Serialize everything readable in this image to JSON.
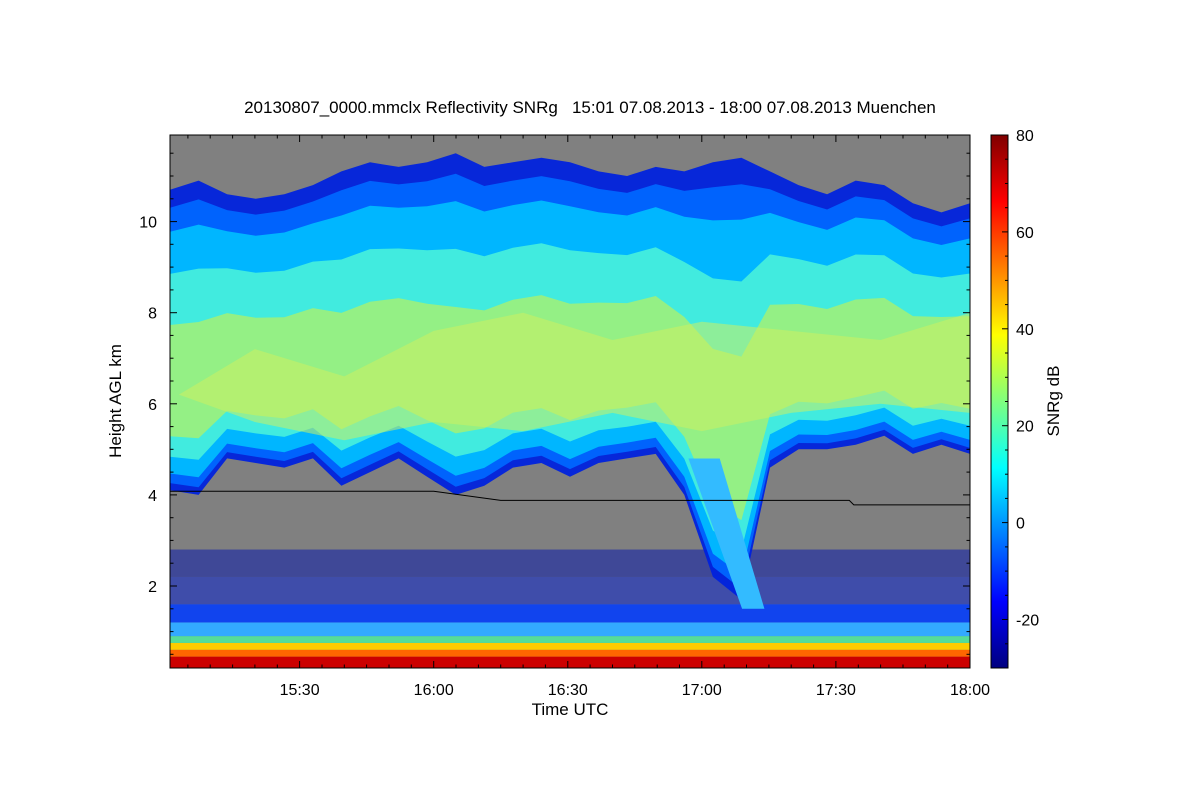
{
  "chart_data": {
    "type": "heatmap",
    "title": "20130807_0000.mmclx Reflectivity SNRg   15:01 07.08.2013 - 18:00 07.08.2013 Muenchen",
    "xlabel": "Time UTC",
    "ylabel": "Height AGL km",
    "x_tick_labels": [
      "15:30",
      "16:00",
      "16:30",
      "17:00",
      "17:30",
      "18:00"
    ],
    "x_tick_values_min": [
      30,
      60,
      90,
      120,
      150,
      180
    ],
    "xlim_min": [
      1,
      180
    ],
    "y_tick_labels": [
      "2",
      "4",
      "6",
      "8",
      "10"
    ],
    "y_tick_values": [
      2,
      4,
      6,
      8,
      10
    ],
    "ylim": [
      0.2,
      11.9
    ],
    "colorbar": {
      "label": "SNRg dB",
      "tick_labels": [
        "-20",
        "0",
        "20",
        "40",
        "60",
        "80"
      ],
      "tick_values": [
        -20,
        0,
        20,
        40,
        60,
        80
      ],
      "range": [
        -30,
        80
      ],
      "colormap": [
        "#00007f",
        "#0000ff",
        "#007fff",
        "#00ffff",
        "#7fff7f",
        "#ffff00",
        "#ff7f00",
        "#ff0000",
        "#7f0000"
      ]
    },
    "no_data_color": "#808080",
    "overlay_line": {
      "color": "#000000",
      "points": [
        [
          1,
          4.08
        ],
        [
          60,
          4.08
        ],
        [
          75,
          3.88
        ],
        [
          153,
          3.88
        ],
        [
          154,
          3.78
        ],
        [
          180,
          3.78
        ]
      ]
    },
    "cloud_layer": {
      "top_km": [
        10.7,
        10.9,
        10.6,
        10.5,
        10.6,
        10.8,
        11.1,
        11.3,
        11.2,
        11.3,
        11.5,
        11.2,
        11.3,
        11.4,
        11.3,
        11.1,
        11.0,
        11.2,
        11.1,
        11.3,
        11.4,
        11.1,
        10.8,
        10.6,
        10.9,
        10.8,
        10.4,
        10.2,
        10.4
      ],
      "base_km": [
        4.1,
        4.0,
        4.8,
        4.7,
        4.6,
        4.8,
        4.2,
        4.5,
        4.8,
        4.4,
        4.0,
        4.2,
        4.6,
        4.7,
        4.4,
        4.7,
        4.8,
        4.9,
        4.0,
        2.2,
        1.7,
        4.6,
        5.0,
        5.0,
        5.1,
        5.3,
        4.9,
        5.1,
        4.9
      ]
    }
  }
}
